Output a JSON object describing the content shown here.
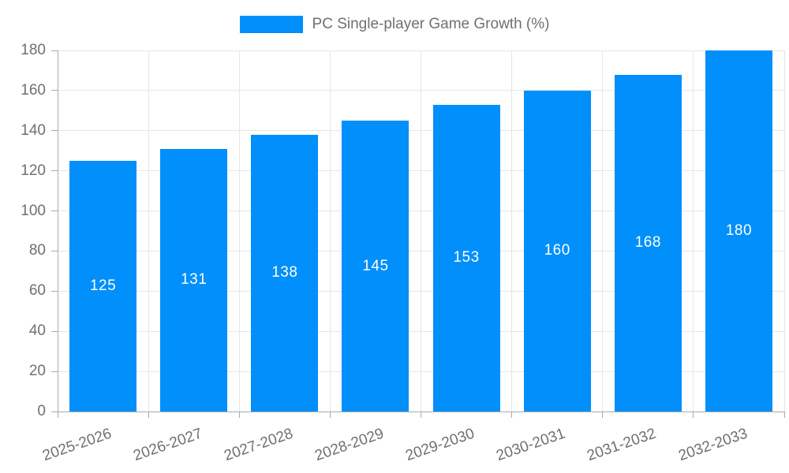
{
  "chart_data": {
    "type": "bar",
    "title": "PC Single-player Game Growth (%)",
    "categories": [
      "2025-2026",
      "2026-2027",
      "2027-2028",
      "2028-2029",
      "2029-2030",
      "2030-2031",
      "2031-2032",
      "2032-2033"
    ],
    "values": [
      125,
      131,
      138,
      145,
      153,
      160,
      168,
      180
    ],
    "xlabel": "",
    "ylabel": "",
    "ylim": [
      0,
      180
    ],
    "ytick_step": 20,
    "yticks": [
      0,
      20,
      40,
      60,
      80,
      100,
      120,
      140,
      160,
      180
    ],
    "grid": true,
    "legend_position": "top",
    "value_labels": "inside-center",
    "colors": {
      "bar": "#008FFB",
      "value_label": "#ffffff",
      "axis_label": "#707070",
      "legend_text": "#707070",
      "gridline": "#e6e6e6",
      "axis_line": "#aaaaaa",
      "background": "#ffffff"
    }
  }
}
